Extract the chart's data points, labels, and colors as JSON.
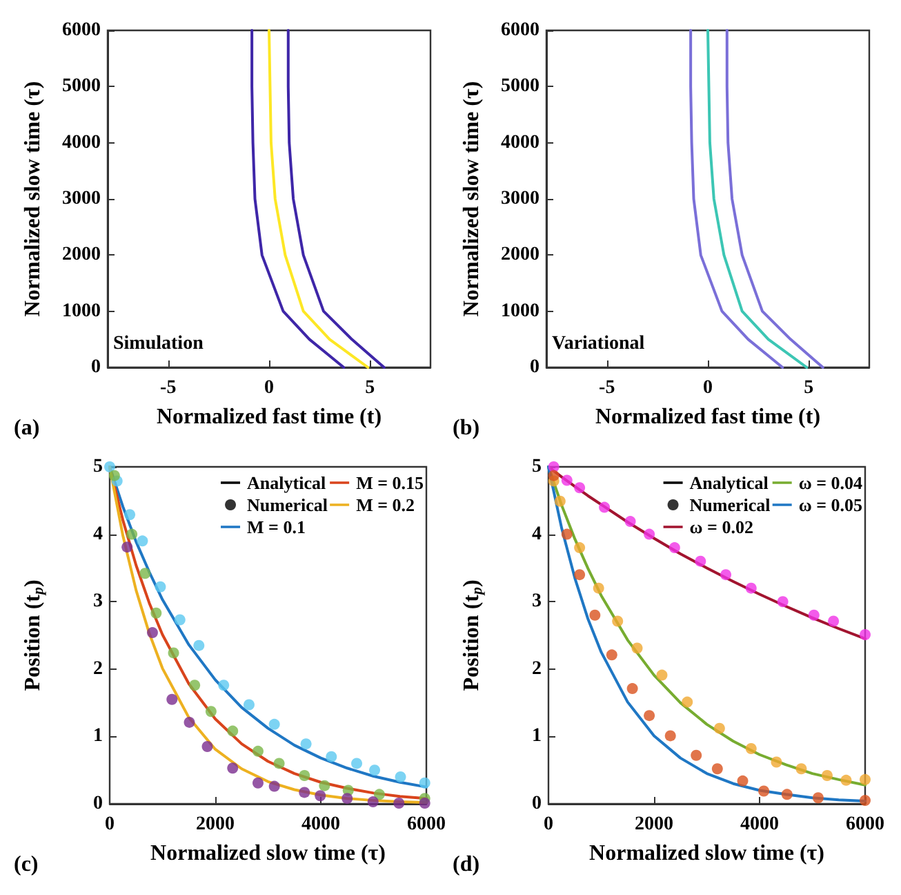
{
  "chart_data": [
    {
      "type": "line",
      "xlabel": "Normalized fast time (t)",
      "ylabel": "Normalized slow time (τ)",
      "annotations": [
        "(a)",
        "Simulation"
      ],
      "xlim": [
        -8,
        8
      ],
      "xticks": [
        -5,
        0,
        5
      ],
      "ylim": [
        0,
        6000
      ],
      "yticks": [
        0,
        1000,
        2000,
        3000,
        4000,
        5000,
        6000
      ],
      "grid": false,
      "marker": "none",
      "series": [
        {
          "color": "#3e26a8",
          "x": [
            3.7,
            2.0,
            0.7,
            -0.35,
            -0.7,
            -0.8,
            -0.85,
            -0.85
          ],
          "values": [
            0,
            500,
            1000,
            2000,
            3000,
            4000,
            5000,
            6000
          ]
        },
        {
          "color": "#fde725",
          "x": [
            4.9,
            3.0,
            1.7,
            0.8,
            0.3,
            0.1,
            0.05,
            0
          ],
          "values": [
            0,
            500,
            1000,
            2000,
            3000,
            4000,
            5000,
            6000
          ]
        },
        {
          "color": "#3e26a8",
          "x": [
            5.7,
            4.1,
            2.7,
            1.7,
            1.2,
            1.0,
            0.95,
            0.95
          ],
          "values": [
            0,
            500,
            1000,
            2000,
            3000,
            4000,
            5000,
            6000
          ]
        }
      ]
    },
    {
      "type": "line",
      "xlabel": "Normalized fast time (t)",
      "ylabel": "Normalized slow time (τ)",
      "annotations": [
        "(b)",
        "Variational"
      ],
      "xlim": [
        -8,
        8
      ],
      "xticks": [
        -5,
        0,
        5
      ],
      "ylim": [
        0,
        6000
      ],
      "yticks": [
        0,
        1000,
        2000,
        3000,
        4000,
        5000,
        6000
      ],
      "grid": false,
      "marker": "none",
      "series": [
        {
          "color": "#7a6fd8",
          "x": [
            3.7,
            2.0,
            0.7,
            -0.35,
            -0.7,
            -0.8,
            -0.85,
            -0.85
          ],
          "values": [
            0,
            500,
            1000,
            2000,
            3000,
            4000,
            5000,
            6000
          ]
        },
        {
          "color": "#3cc6b4",
          "x": [
            4.9,
            3.0,
            1.7,
            0.8,
            0.3,
            0.1,
            0.05,
            0
          ],
          "values": [
            0,
            500,
            1000,
            2000,
            3000,
            4000,
            5000,
            6000
          ]
        },
        {
          "color": "#7a6fd8",
          "x": [
            5.7,
            4.1,
            2.7,
            1.7,
            1.2,
            1.0,
            0.95,
            0.95
          ],
          "values": [
            0,
            500,
            1000,
            2000,
            3000,
            4000,
            5000,
            6000
          ]
        }
      ]
    },
    {
      "type": "line",
      "xlabel": "Normalized slow time (τ)",
      "ylabel": "Position (t$_{p}$)",
      "annotations": [
        "(c)"
      ],
      "xlim": [
        0,
        6000
      ],
      "xticks": [
        0,
        2000,
        4000,
        6000
      ],
      "ylim": [
        0,
        5
      ],
      "yticks": [
        0,
        1,
        2,
        3,
        4,
        5
      ],
      "grid": false,
      "marker": "none",
      "legend": "top right",
      "series": [
        {
          "name": "Analytical",
          "color": "#000000"
        },
        {
          "name": "Numerical",
          "type": "scatter",
          "marker": "circle",
          "color": "#000000"
        },
        {
          "name": "M = 0.1",
          "color": "#1f77c4",
          "x": [
            0,
            250,
            500,
            750,
            1000,
            1500,
            2000,
            2500,
            3000,
            3500,
            4000,
            4500,
            5000,
            5500,
            6000
          ],
          "values": [
            5,
            4.41,
            3.89,
            3.44,
            3.03,
            2.36,
            1.84,
            1.43,
            1.12,
            0.87,
            0.68,
            0.53,
            0.41,
            0.32,
            0.25
          ]
        },
        {
          "name": "M = 0.15",
          "color": "#d9441c",
          "x": [
            0,
            250,
            500,
            750,
            1000,
            1500,
            2000,
            2500,
            3000,
            3500,
            4000,
            4500,
            5000,
            5500,
            6000
          ],
          "values": [
            5,
            4.21,
            3.54,
            2.98,
            2.51,
            1.78,
            1.26,
            0.89,
            0.63,
            0.45,
            0.32,
            0.23,
            0.16,
            0.11,
            0.08
          ]
        },
        {
          "name": "M = 0.2",
          "color": "#edb120",
          "x": [
            0,
            250,
            500,
            750,
            1000,
            1500,
            2000,
            2500,
            3000,
            3500,
            4000,
            4500,
            5000,
            5500,
            6000
          ],
          "values": [
            5,
            3.98,
            3.17,
            2.53,
            2.01,
            1.28,
            0.81,
            0.52,
            0.33,
            0.21,
            0.13,
            0.08,
            0.05,
            0.03,
            0.02
          ]
        },
        {
          "type": "scatter",
          "marker": "circle",
          "color": "#5bc8f0",
          "x": [
            0,
            140,
            380,
            620,
            960,
            1330,
            1690,
            2160,
            2640,
            3120,
            3720,
            4200,
            4680,
            5020,
            5510,
            5970
          ],
          "values": [
            5.0,
            4.79,
            4.29,
            3.9,
            3.22,
            2.73,
            2.35,
            1.76,
            1.47,
            1.18,
            0.89,
            0.7,
            0.6,
            0.5,
            0.4,
            0.31
          ]
        },
        {
          "type": "scatter",
          "marker": "circle",
          "color": "#7ab648",
          "x": [
            90,
            420,
            670,
            880,
            1210,
            1610,
            1920,
            2330,
            2810,
            3210,
            3690,
            4070,
            4520,
            5110,
            5970
          ],
          "values": [
            4.87,
            4.0,
            3.42,
            2.83,
            2.24,
            1.76,
            1.37,
            1.08,
            0.78,
            0.6,
            0.42,
            0.27,
            0.2,
            0.14,
            0.08
          ]
        },
        {
          "type": "scatter",
          "marker": "circle",
          "color": "#7b2d8e",
          "x": [
            330,
            810,
            1180,
            1510,
            1850,
            2330,
            2810,
            3120,
            3690,
            3990,
            4500,
            4990,
            5480,
            5970
          ],
          "values": [
            3.81,
            2.54,
            1.55,
            1.21,
            0.85,
            0.53,
            0.31,
            0.26,
            0.17,
            0.12,
            0.08,
            0.03,
            0.01,
            0.01
          ]
        }
      ]
    },
    {
      "type": "line",
      "xlabel": "Normalized slow time (τ)",
      "ylabel": "Position (t$_{p}$)",
      "annotations": [
        "(d)"
      ],
      "xlim": [
        0,
        6000
      ],
      "xticks": [
        0,
        2000,
        4000,
        6000
      ],
      "ylim": [
        0,
        5
      ],
      "yticks": [
        0,
        1,
        2,
        3,
        4,
        5
      ],
      "grid": false,
      "marker": "none",
      "legend": "top right",
      "series": [
        {
          "name": "Analytical",
          "color": "#000000"
        },
        {
          "name": "Numerical",
          "type": "scatter",
          "marker": "circle",
          "color": "#000000"
        },
        {
          "name": "ω = 0.02",
          "color": "#a2142f",
          "x": [
            0,
            250,
            500,
            750,
            1000,
            1500,
            2000,
            2500,
            3000,
            3500,
            4000,
            4500,
            5000,
            5500,
            6000
          ],
          "values": [
            5,
            4.85,
            4.71,
            4.57,
            4.44,
            4.18,
            3.94,
            3.71,
            3.5,
            3.3,
            3.11,
            2.93,
            2.76,
            2.6,
            2.45
          ]
        },
        {
          "name": "ω = 0.04",
          "color": "#77ac30",
          "x": [
            0,
            250,
            500,
            750,
            1000,
            1500,
            2000,
            2500,
            3000,
            3500,
            4000,
            4500,
            5000,
            5500,
            6000
          ],
          "values": [
            5,
            4.43,
            3.93,
            3.49,
            3.09,
            2.43,
            1.91,
            1.5,
            1.18,
            0.93,
            0.73,
            0.58,
            0.45,
            0.36,
            0.28
          ]
        },
        {
          "name": "ω = 0.05",
          "color": "#1f77c4",
          "x": [
            0,
            250,
            500,
            750,
            1000,
            1500,
            2000,
            2500,
            3000,
            3500,
            4000,
            4500,
            5000,
            5500,
            6000
          ],
          "values": [
            5,
            4.09,
            3.35,
            2.74,
            2.25,
            1.51,
            1.01,
            0.68,
            0.45,
            0.3,
            0.2,
            0.14,
            0.09,
            0.06,
            0.04
          ]
        },
        {
          "type": "scatter",
          "marker": "circle",
          "color": "#f032e6",
          "x": [
            100,
            350,
            590,
            1060,
            1550,
            1910,
            2390,
            2880,
            3360,
            3840,
            4440,
            5030,
            5400,
            6000
          ],
          "values": [
            5.0,
            4.8,
            4.69,
            4.4,
            4.19,
            4.0,
            3.8,
            3.6,
            3.4,
            3.2,
            3.0,
            2.8,
            2.71,
            2.51
          ]
        },
        {
          "type": "scatter",
          "marker": "circle",
          "color": "#f0a830",
          "x": [
            100,
            220,
            590,
            950,
            1310,
            1680,
            2150,
            2630,
            3240,
            3840,
            4320,
            4790,
            5280,
            5640,
            6000
          ],
          "values": [
            4.79,
            4.49,
            3.8,
            3.2,
            2.71,
            2.31,
            1.91,
            1.51,
            1.12,
            0.82,
            0.62,
            0.52,
            0.42,
            0.35,
            0.36
          ]
        },
        {
          "type": "scatter",
          "marker": "circle",
          "color": "#d9531e",
          "x": [
            100,
            350,
            590,
            880,
            1200,
            1590,
            1910,
            2310,
            2800,
            3200,
            3680,
            4080,
            4520,
            5110,
            6000
          ],
          "values": [
            4.87,
            4.0,
            3.4,
            2.8,
            2.21,
            1.71,
            1.31,
            1.01,
            0.72,
            0.52,
            0.34,
            0.19,
            0.14,
            0.09,
            0.05
          ]
        }
      ]
    }
  ]
}
